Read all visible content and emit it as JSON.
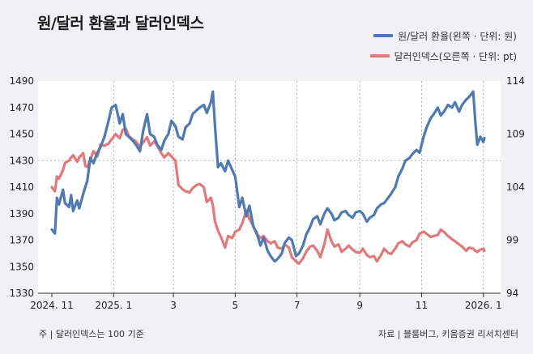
{
  "title": "원/달러 환율과 달러인덱스",
  "legend": [
    {
      "label": "원/달러 환율(왼쪽 · 단위: 원)",
      "color": "#5079b1"
    },
    {
      "label": "달러인덱스(오른쪽 · 단위: pt)",
      "color": "#e0787c"
    }
  ],
  "footnote_left": "주 | 달러인덱스는 100 기준",
  "footnote_right": "자료 | 블룸버그, 키움증권 리서치센터",
  "chart_data": {
    "type": "line",
    "x_tick_labels": [
      "2024. 11",
      "2025. 1",
      "3",
      "5",
      "7",
      "9",
      "11",
      "2026. 1"
    ],
    "y_left": {
      "ticks": [
        1330,
        1350,
        1370,
        1390,
        1410,
        1430,
        1450,
        1470,
        1490
      ],
      "ylim": [
        1330,
        1490
      ]
    },
    "y_right": {
      "ticks": [
        94,
        99,
        104,
        109,
        114
      ],
      "ylim": [
        94,
        114
      ]
    },
    "grid": "vertical dashed at month ticks; dashed horizontal at 1430",
    "series": [
      {
        "name": "원/달러 환율(왼쪽 · 단위: 원)",
        "axis": "left",
        "color": "#5079b1",
        "x": [
          "2024-11-01",
          "2024-11-04",
          "2024-11-06",
          "2024-11-08",
          "2024-11-12",
          "2024-11-14",
          "2024-11-18",
          "2024-11-20",
          "2024-11-22",
          "2024-11-26",
          "2024-11-28",
          "2024-12-02",
          "2024-12-04",
          "2024-12-06",
          "2024-12-09",
          "2024-12-12",
          "2024-12-16",
          "2024-12-19",
          "2024-12-23",
          "2024-12-27",
          "2024-12-30",
          "2025-01-03",
          "2025-01-07",
          "2025-01-10",
          "2025-01-13",
          "2025-01-16",
          "2025-01-20",
          "2025-01-23",
          "2025-01-27",
          "2025-01-30",
          "2025-02-03",
          "2025-02-06",
          "2025-02-10",
          "2025-02-13",
          "2025-02-17",
          "2025-02-20",
          "2025-02-24",
          "2025-02-27",
          "2025-03-03",
          "2025-03-06",
          "2025-03-10",
          "2025-03-13",
          "2025-03-17",
          "2025-03-20",
          "2025-03-24",
          "2025-03-27",
          "2025-03-31",
          "2025-04-03",
          "2025-04-07",
          "2025-04-09",
          "2025-04-11",
          "2025-04-14",
          "2025-04-17",
          "2025-04-21",
          "2025-04-24",
          "2025-04-28",
          "2025-05-01",
          "2025-05-05",
          "2025-05-08",
          "2025-05-12",
          "2025-05-15",
          "2025-05-19",
          "2025-05-22",
          "2025-05-26",
          "2025-05-29",
          "2025-06-02",
          "2025-06-05",
          "2025-06-09",
          "2025-06-12",
          "2025-06-16",
          "2025-06-19",
          "2025-06-23",
          "2025-06-26",
          "2025-06-30",
          "2025-07-03",
          "2025-07-07",
          "2025-07-10",
          "2025-07-14",
          "2025-07-17",
          "2025-07-21",
          "2025-07-24",
          "2025-07-28",
          "2025-07-31",
          "2025-08-04",
          "2025-08-07",
          "2025-08-11",
          "2025-08-14",
          "2025-08-18",
          "2025-08-21",
          "2025-08-25",
          "2025-08-28",
          "2025-09-01",
          "2025-09-04",
          "2025-09-08",
          "2025-09-11",
          "2025-09-15",
          "2025-09-18",
          "2025-09-22",
          "2025-09-25",
          "2025-09-29",
          "2025-10-02",
          "2025-10-06",
          "2025-10-09",
          "2025-10-13",
          "2025-10-16",
          "2025-10-20",
          "2025-10-23",
          "2025-10-27",
          "2025-10-30",
          "2025-11-03",
          "2025-11-06",
          "2025-11-10",
          "2025-11-13",
          "2025-11-17",
          "2025-11-20",
          "2025-11-24",
          "2025-11-27",
          "2025-12-01",
          "2025-12-04",
          "2025-12-08",
          "2025-12-11",
          "2025-12-15",
          "2025-12-18",
          "2025-12-22",
          "2025-12-24",
          "2025-12-26",
          "2025-12-29",
          "2026-01-01",
          "2026-01-02"
        ],
        "values": [
          1378,
          1375,
          1402,
          1397,
          1408,
          1398,
          1395,
          1404,
          1392,
          1400,
          1394,
          1405,
          1410,
          1415,
          1432,
          1428,
          1436,
          1440,
          1448,
          1460,
          1470,
          1472,
          1458,
          1465,
          1450,
          1448,
          1445,
          1442,
          1437,
          1452,
          1465,
          1450,
          1448,
          1442,
          1438,
          1445,
          1450,
          1460,
          1456,
          1448,
          1446,
          1455,
          1458,
          1465,
          1468,
          1470,
          1472,
          1466,
          1474,
          1482,
          1457,
          1425,
          1428,
          1422,
          1430,
          1423,
          1418,
          1395,
          1402,
          1388,
          1396,
          1380,
          1376,
          1366,
          1372,
          1362,
          1358,
          1354,
          1356,
          1360,
          1368,
          1372,
          1370,
          1358,
          1360,
          1366,
          1374,
          1380,
          1386,
          1388,
          1382,
          1390,
          1394,
          1390,
          1385,
          1387,
          1391,
          1392,
          1389,
          1387,
          1391,
          1392,
          1390,
          1384,
          1387,
          1389,
          1394,
          1397,
          1398,
          1402,
          1405,
          1410,
          1418,
          1424,
          1430,
          1432,
          1435,
          1438,
          1436,
          1448,
          1455,
          1462,
          1465,
          1470,
          1464,
          1468,
          1472,
          1470,
          1474,
          1467,
          1472,
          1476,
          1478,
          1482,
          1460,
          1442,
          1448,
          1444,
          1447
        ]
      },
      {
        "name": "달러인덱스(오른쪽 · 단위: pt)",
        "axis": "right",
        "color": "#e0787c",
        "x": [
          "2024-11-01",
          "2024-11-04",
          "2024-11-06",
          "2024-11-08",
          "2024-11-12",
          "2024-11-14",
          "2024-11-18",
          "2024-11-20",
          "2024-11-22",
          "2024-11-26",
          "2024-11-28",
          "2024-12-02",
          "2024-12-04",
          "2024-12-06",
          "2024-12-09",
          "2024-12-12",
          "2024-12-16",
          "2024-12-19",
          "2024-12-23",
          "2024-12-27",
          "2024-12-30",
          "2025-01-03",
          "2025-01-07",
          "2025-01-10",
          "2025-01-13",
          "2025-01-16",
          "2025-01-20",
          "2025-01-23",
          "2025-01-27",
          "2025-01-30",
          "2025-02-03",
          "2025-02-06",
          "2025-02-10",
          "2025-02-13",
          "2025-02-17",
          "2025-02-20",
          "2025-02-24",
          "2025-02-27",
          "2025-03-03",
          "2025-03-06",
          "2025-03-10",
          "2025-03-13",
          "2025-03-17",
          "2025-03-20",
          "2025-03-24",
          "2025-03-27",
          "2025-03-31",
          "2025-04-03",
          "2025-04-07",
          "2025-04-09",
          "2025-04-11",
          "2025-04-14",
          "2025-04-17",
          "2025-04-21",
          "2025-04-24",
          "2025-04-28",
          "2025-05-01",
          "2025-05-05",
          "2025-05-08",
          "2025-05-12",
          "2025-05-15",
          "2025-05-19",
          "2025-05-22",
          "2025-05-26",
          "2025-05-29",
          "2025-06-02",
          "2025-06-05",
          "2025-06-09",
          "2025-06-12",
          "2025-06-16",
          "2025-06-19",
          "2025-06-23",
          "2025-06-26",
          "2025-06-30",
          "2025-07-03",
          "2025-07-07",
          "2025-07-10",
          "2025-07-14",
          "2025-07-17",
          "2025-07-21",
          "2025-07-24",
          "2025-07-28",
          "2025-07-31",
          "2025-08-04",
          "2025-08-07",
          "2025-08-11",
          "2025-08-14",
          "2025-08-18",
          "2025-08-21",
          "2025-08-25",
          "2025-08-28",
          "2025-09-01",
          "2025-09-04",
          "2025-09-08",
          "2025-09-11",
          "2025-09-15",
          "2025-09-18",
          "2025-09-22",
          "2025-09-25",
          "2025-09-29",
          "2025-10-02",
          "2025-10-06",
          "2025-10-09",
          "2025-10-13",
          "2025-10-16",
          "2025-10-20",
          "2025-10-23",
          "2025-10-27",
          "2025-10-30",
          "2025-11-03",
          "2025-11-06",
          "2025-11-10",
          "2025-11-13",
          "2025-11-17",
          "2025-11-20",
          "2025-11-24",
          "2025-11-27",
          "2025-12-01",
          "2025-12-04",
          "2025-12-08",
          "2025-12-11",
          "2025-12-15",
          "2025-12-18",
          "2025-12-22",
          "2025-12-24",
          "2025-12-26",
          "2025-12-29",
          "2026-01-01",
          "2026-01-02"
        ],
        "values": [
          104.0,
          103.6,
          105.0,
          104.8,
          105.6,
          106.3,
          106.5,
          106.8,
          107.0,
          106.4,
          106.8,
          107.2,
          106.0,
          105.9,
          106.6,
          107.4,
          106.9,
          108.0,
          107.9,
          108.1,
          108.5,
          109.0,
          108.6,
          109.4,
          109.5,
          108.8,
          108.5,
          108.3,
          107.8,
          108.2,
          108.7,
          107.9,
          108.3,
          107.9,
          107.2,
          106.8,
          107.2,
          106.9,
          106.5,
          104.2,
          103.8,
          103.6,
          103.5,
          103.9,
          104.2,
          104.3,
          104.0,
          102.6,
          103.0,
          102.3,
          100.8,
          99.9,
          99.3,
          98.3,
          99.4,
          99.2,
          99.8,
          100.0,
          100.6,
          101.8,
          101.0,
          100.3,
          99.6,
          99.2,
          99.4,
          98.9,
          98.7,
          98.9,
          98.3,
          98.2,
          98.6,
          98.3,
          97.4,
          97.0,
          96.8,
          97.3,
          97.9,
          98.4,
          98.5,
          98.0,
          97.4,
          98.6,
          100.0,
          98.9,
          98.4,
          98.6,
          97.9,
          98.2,
          98.5,
          98.1,
          97.9,
          97.8,
          98.2,
          97.6,
          97.4,
          97.5,
          97.0,
          97.6,
          98.2,
          97.8,
          97.7,
          98.2,
          98.7,
          98.9,
          98.6,
          98.4,
          98.8,
          99.0,
          99.6,
          99.8,
          99.6,
          99.3,
          99.4,
          99.5,
          100.0,
          99.7,
          99.4,
          99.1,
          98.9,
          98.6,
          98.4,
          98.0,
          98.3,
          98.2,
          98.0,
          97.9,
          98.1,
          98.2,
          98.0
        ]
      }
    ]
  }
}
